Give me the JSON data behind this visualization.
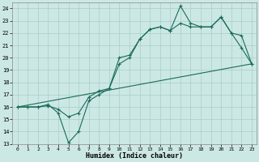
{
  "xlabel": "Humidex (Indice chaleur)",
  "xlim": [
    -0.5,
    23.5
  ],
  "ylim": [
    13,
    24.5
  ],
  "yticks": [
    13,
    14,
    15,
    16,
    17,
    18,
    19,
    20,
    21,
    22,
    23,
    24
  ],
  "xticks": [
    0,
    1,
    2,
    3,
    4,
    5,
    6,
    7,
    8,
    9,
    10,
    11,
    12,
    13,
    14,
    15,
    16,
    17,
    18,
    19,
    20,
    21,
    22,
    23
  ],
  "line_color": "#1a6b5a",
  "bg_color": "#cce8e4",
  "grid_color": "#a8ceca",
  "line1_x": [
    0,
    1,
    2,
    3,
    4,
    5,
    6,
    7,
    8,
    9,
    10,
    11,
    12,
    13,
    14,
    15,
    16,
    17,
    18,
    19,
    20,
    21,
    22,
    23
  ],
  "line1_y": [
    16.0,
    16.0,
    16.0,
    16.2,
    15.5,
    13.1,
    14.0,
    16.5,
    17.0,
    17.5,
    19.5,
    20.0,
    21.5,
    22.3,
    22.5,
    22.2,
    24.2,
    22.8,
    22.5,
    22.5,
    23.3,
    22.0,
    20.8,
    19.5
  ],
  "line2_x": [
    0,
    1,
    2,
    3,
    4,
    5,
    6,
    7,
    8,
    9,
    10,
    11,
    12,
    13,
    14,
    15,
    16,
    17,
    18,
    19,
    20,
    21,
    22,
    23
  ],
  "line2_y": [
    16.0,
    16.0,
    16.0,
    16.1,
    15.8,
    15.2,
    15.5,
    16.8,
    17.3,
    17.5,
    20.0,
    20.2,
    21.5,
    22.3,
    22.5,
    22.2,
    22.8,
    22.5,
    22.5,
    22.5,
    23.3,
    22.0,
    21.8,
    19.5
  ],
  "line3_x": [
    0,
    23
  ],
  "line3_y": [
    16.0,
    19.5
  ]
}
